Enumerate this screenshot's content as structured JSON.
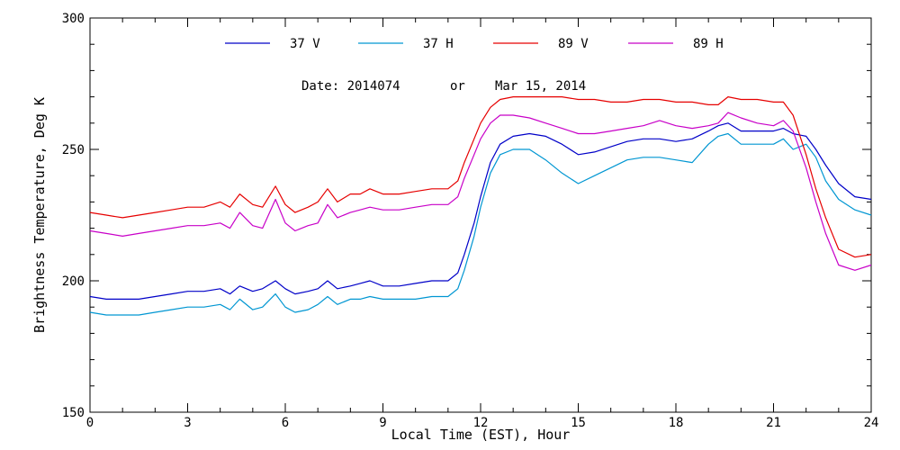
{
  "chart_data": {
    "type": "line",
    "title": "",
    "xlabel": "Local Time (EST), Hour",
    "ylabel": "Brightness Temperature, Deg K",
    "xlim": [
      0,
      24
    ],
    "ylim": [
      150,
      300
    ],
    "xticks": [
      0,
      3,
      6,
      9,
      12,
      15,
      18,
      21,
      24
    ],
    "yticks": [
      150,
      200,
      250,
      300
    ],
    "xtick_labels": [
      "0",
      "3",
      "6",
      "9",
      "12",
      "15",
      "18",
      "21",
      "24"
    ],
    "ytick_labels": [
      "150",
      "200",
      "250",
      "300"
    ],
    "grid": false,
    "legend_position": "top",
    "annotation": {
      "date_text": "Date: 2014074",
      "or_text": "or",
      "date_alt_text": "Mar 15, 2014"
    },
    "series": [
      {
        "name": "37 V",
        "color": "#0000c8",
        "x": [
          0,
          0.5,
          1,
          1.5,
          2,
          2.5,
          3,
          3.5,
          4,
          4.3,
          4.6,
          5,
          5.3,
          5.7,
          6,
          6.3,
          6.7,
          7,
          7.3,
          7.6,
          8,
          8.3,
          8.6,
          9,
          9.5,
          10,
          10.5,
          11,
          11.3,
          11.5,
          11.8,
          12,
          12.3,
          12.6,
          13,
          13.5,
          14,
          14.5,
          15,
          15.5,
          16,
          16.5,
          17,
          17.5,
          18,
          18.5,
          19,
          19.3,
          19.6,
          20,
          20.5,
          21,
          21.3,
          21.6,
          22,
          22.3,
          22.6,
          23,
          23.5,
          24
        ],
        "y": [
          194,
          193,
          193,
          193,
          194,
          195,
          196,
          196,
          197,
          195,
          198,
          196,
          197,
          200,
          197,
          195,
          196,
          197,
          200,
          197,
          198,
          199,
          200,
          198,
          198,
          199,
          200,
          200,
          203,
          210,
          222,
          232,
          245,
          252,
          255,
          256,
          255,
          252,
          248,
          249,
          251,
          253,
          254,
          254,
          253,
          254,
          257,
          259,
          260,
          257,
          257,
          257,
          258,
          256,
          255,
          250,
          244,
          237,
          232,
          231
        ]
      },
      {
        "name": "37 H",
        "color": "#0096d2",
        "x": [
          0,
          0.5,
          1,
          1.5,
          2,
          2.5,
          3,
          3.5,
          4,
          4.3,
          4.6,
          5,
          5.3,
          5.7,
          6,
          6.3,
          6.7,
          7,
          7.3,
          7.6,
          8,
          8.3,
          8.6,
          9,
          9.5,
          10,
          10.5,
          11,
          11.3,
          11.5,
          11.8,
          12,
          12.3,
          12.6,
          13,
          13.5,
          14,
          14.5,
          15,
          15.5,
          16,
          16.5,
          17,
          17.5,
          18,
          18.5,
          19,
          19.3,
          19.6,
          20,
          20.5,
          21,
          21.3,
          21.6,
          22,
          22.3,
          22.6,
          23,
          23.5,
          24
        ],
        "y": [
          188,
          187,
          187,
          187,
          188,
          189,
          190,
          190,
          191,
          189,
          193,
          189,
          190,
          195,
          190,
          188,
          189,
          191,
          194,
          191,
          193,
          193,
          194,
          193,
          193,
          193,
          194,
          194,
          197,
          204,
          217,
          228,
          241,
          248,
          250,
          250,
          246,
          241,
          237,
          240,
          243,
          246,
          247,
          247,
          246,
          245,
          252,
          255,
          256,
          252,
          252,
          252,
          254,
          250,
          252,
          247,
          238,
          231,
          227,
          225
        ]
      },
      {
        "name": "89 V",
        "color": "#e60000",
        "x": [
          0,
          0.5,
          1,
          1.5,
          2,
          2.5,
          3,
          3.5,
          4,
          4.3,
          4.6,
          5,
          5.3,
          5.7,
          6,
          6.3,
          6.7,
          7,
          7.3,
          7.6,
          8,
          8.3,
          8.6,
          9,
          9.5,
          10,
          10.5,
          11,
          11.3,
          11.5,
          11.8,
          12,
          12.3,
          12.6,
          13,
          13.5,
          14,
          14.5,
          15,
          15.5,
          16,
          16.5,
          17,
          17.5,
          18,
          18.5,
          19,
          19.3,
          19.6,
          20,
          20.5,
          21,
          21.3,
          21.6,
          22,
          22.3,
          22.6,
          23,
          23.5,
          24
        ],
        "y": [
          226,
          225,
          224,
          225,
          226,
          227,
          228,
          228,
          230,
          228,
          233,
          229,
          228,
          236,
          229,
          226,
          228,
          230,
          235,
          230,
          233,
          233,
          235,
          233,
          233,
          234,
          235,
          235,
          238,
          245,
          254,
          260,
          266,
          269,
          270,
          270,
          270,
          270,
          269,
          269,
          268,
          268,
          269,
          269,
          268,
          268,
          267,
          267,
          270,
          269,
          269,
          268,
          268,
          263,
          248,
          235,
          224,
          212,
          209,
          210
        ]
      },
      {
        "name": "89 H",
        "color": "#c800c8",
        "x": [
          0,
          0.5,
          1,
          1.5,
          2,
          2.5,
          3,
          3.5,
          4,
          4.3,
          4.6,
          5,
          5.3,
          5.7,
          6,
          6.3,
          6.7,
          7,
          7.3,
          7.6,
          8,
          8.3,
          8.6,
          9,
          9.5,
          10,
          10.5,
          11,
          11.3,
          11.5,
          11.8,
          12,
          12.3,
          12.6,
          13,
          13.5,
          14,
          14.5,
          15,
          15.5,
          16,
          16.5,
          17,
          17.5,
          18,
          18.5,
          19,
          19.3,
          19.6,
          20,
          20.5,
          21,
          21.3,
          21.6,
          22,
          22.3,
          22.6,
          23,
          23.5,
          24
        ],
        "y": [
          219,
          218,
          217,
          218,
          219,
          220,
          221,
          221,
          222,
          220,
          226,
          221,
          220,
          231,
          222,
          219,
          221,
          222,
          229,
          224,
          226,
          227,
          228,
          227,
          227,
          228,
          229,
          229,
          232,
          239,
          248,
          254,
          260,
          263,
          263,
          262,
          260,
          258,
          256,
          256,
          257,
          258,
          259,
          261,
          259,
          258,
          259,
          260,
          264,
          262,
          260,
          259,
          261,
          257,
          243,
          230,
          218,
          206,
          204,
          206
        ]
      }
    ]
  }
}
